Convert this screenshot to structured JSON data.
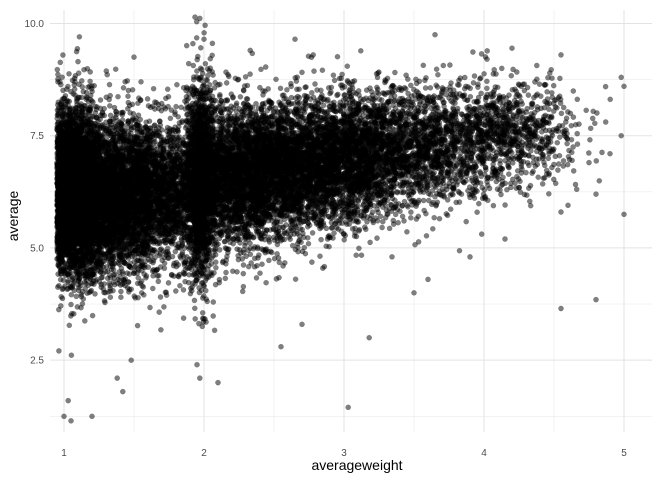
{
  "chart_data": {
    "type": "scatter",
    "title": "",
    "xlabel": "averageweight",
    "ylabel": "average",
    "xlim": [
      0.9,
      5.2
    ],
    "ylim": [
      0.9,
      10.3
    ],
    "x_ticks": [
      1,
      2,
      3,
      4,
      5
    ],
    "x_tick_labels": [
      "1",
      "2",
      "3",
      "4",
      "5"
    ],
    "y_ticks": [
      2.5,
      5.0,
      7.5,
      10.0
    ],
    "y_tick_labels": [
      "2.5",
      "5.0",
      "7.5",
      "10.0"
    ],
    "x_minor_grid": [
      1.5,
      2.5,
      3.5,
      4.5
    ],
    "y_minor_grid": [
      1.25,
      3.75,
      6.25,
      8.75
    ],
    "grid": true,
    "theme": "minimal",
    "point_color": "#000000",
    "point_alpha": 0.5,
    "points": [
      {
        "x": 1.0,
        "y": 1.25
      },
      {
        "x": 1.03,
        "y": 1.6
      },
      {
        "x": 1.05,
        "y": 1.15
      },
      {
        "x": 1.2,
        "y": 1.25
      },
      {
        "x": 1.38,
        "y": 2.1
      },
      {
        "x": 1.42,
        "y": 1.8
      },
      {
        "x": 1.48,
        "y": 2.5
      },
      {
        "x": 1.95,
        "y": 2.4
      },
      {
        "x": 1.97,
        "y": 2.1
      },
      {
        "x": 2.1,
        "y": 2.0
      },
      {
        "x": 3.03,
        "y": 1.45
      },
      {
        "x": 3.18,
        "y": 3.0
      },
      {
        "x": 2.0,
        "y": 9.65
      },
      {
        "x": 2.33,
        "y": 9.4
      },
      {
        "x": 2.65,
        "y": 9.65
      },
      {
        "x": 2.78,
        "y": 9.3
      },
      {
        "x": 3.65,
        "y": 9.75
      },
      {
        "x": 4.2,
        "y": 9.45
      },
      {
        "x": 4.55,
        "y": 9.3
      },
      {
        "x": 4.98,
        "y": 8.8
      },
      {
        "x": 5.0,
        "y": 8.6
      },
      {
        "x": 4.98,
        "y": 7.5
      },
      {
        "x": 5.0,
        "y": 5.75
      },
      {
        "x": 4.8,
        "y": 3.85
      },
      {
        "x": 4.55,
        "y": 3.65
      },
      {
        "x": 4.9,
        "y": 7.1
      },
      {
        "x": 4.75,
        "y": 6.9
      },
      {
        "x": 4.8,
        "y": 6.2
      },
      {
        "x": 4.6,
        "y": 5.95
      },
      {
        "x": 4.55,
        "y": 5.8
      },
      {
        "x": 3.5,
        "y": 4.0
      },
      {
        "x": 3.6,
        "y": 4.3
      },
      {
        "x": 3.9,
        "y": 4.8
      },
      {
        "x": 4.15,
        "y": 5.2
      },
      {
        "x": 1.1,
        "y": 9.15
      },
      {
        "x": 1.5,
        "y": 9.25
      },
      {
        "x": 1.55,
        "y": 8.7
      },
      {
        "x": 2.55,
        "y": 2.8
      },
      {
        "x": 2.7,
        "y": 3.3
      }
    ],
    "density": [
      {
        "x": 1.08,
        "y": 6.3,
        "sx": 0.1,
        "sy": 0.9,
        "n": 4200
      },
      {
        "x": 1.3,
        "y": 6.1,
        "sx": 0.18,
        "sy": 0.85,
        "n": 2600
      },
      {
        "x": 1.6,
        "y": 6.2,
        "sx": 0.22,
        "sy": 0.8,
        "n": 2600
      },
      {
        "x": 1.98,
        "y": 6.5,
        "sx": 0.05,
        "sy": 1.15,
        "n": 1400
      },
      {
        "x": 2.2,
        "y": 6.55,
        "sx": 0.22,
        "sy": 0.8,
        "n": 2600
      },
      {
        "x": 2.6,
        "y": 6.8,
        "sx": 0.25,
        "sy": 0.75,
        "n": 2300
      },
      {
        "x": 3.0,
        "y": 7.0,
        "sx": 0.25,
        "sy": 0.72,
        "n": 1900
      },
      {
        "x": 3.45,
        "y": 7.2,
        "sx": 0.25,
        "sy": 0.68,
        "n": 1300
      },
      {
        "x": 3.9,
        "y": 7.45,
        "sx": 0.25,
        "sy": 0.62,
        "n": 800
      },
      {
        "x": 4.3,
        "y": 7.65,
        "sx": 0.2,
        "sy": 0.6,
        "n": 450
      }
    ]
  }
}
